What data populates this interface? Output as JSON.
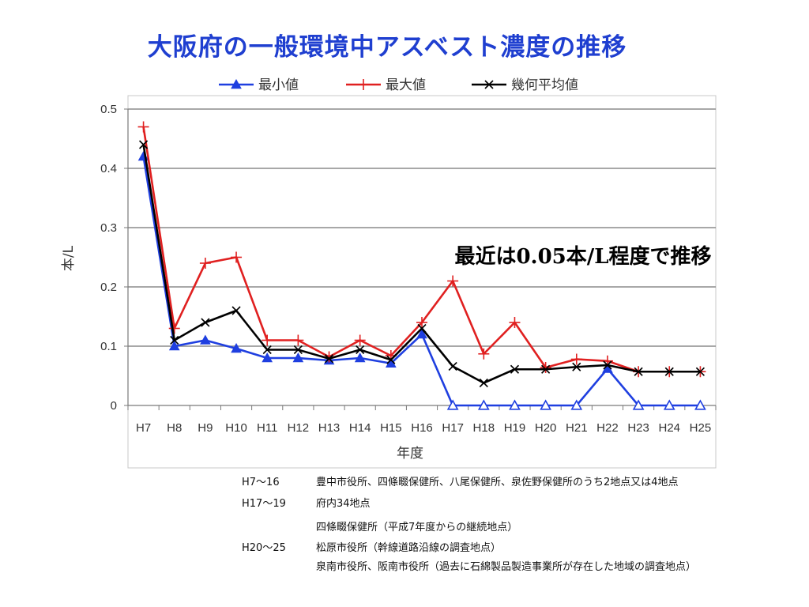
{
  "slide": {
    "title": "大阪府の一般環境中アスベスト濃度の推移"
  },
  "chart_data": {
    "type": "line",
    "categories": [
      "H7",
      "H8",
      "H9",
      "H10",
      "H11",
      "H12",
      "H13",
      "H14",
      "H15",
      "H16",
      "H17",
      "H18",
      "H19",
      "H20",
      "H21",
      "H22",
      "H23",
      "H24",
      "H25"
    ],
    "series": [
      {
        "name": "最小値",
        "color": "#1f3fe0",
        "marker": "triangle",
        "values": [
          0.42,
          0.1,
          0.11,
          0.096,
          0.08,
          0.08,
          0.076,
          0.08,
          0.071,
          0.12,
          0.0,
          0.0,
          0.0,
          0.0,
          0.0,
          0.062,
          0.0,
          0.0,
          0.0
        ]
      },
      {
        "name": "最大値",
        "color": "#e02020",
        "marker": "plus",
        "values": [
          0.47,
          0.13,
          0.24,
          0.25,
          0.11,
          0.11,
          0.082,
          0.11,
          0.084,
          0.14,
          0.21,
          0.087,
          0.14,
          0.064,
          0.078,
          0.075,
          0.057,
          0.057,
          0.057
        ]
      },
      {
        "name": "幾何平均値",
        "color": "#000000",
        "marker": "x",
        "values": [
          0.44,
          0.11,
          0.14,
          0.16,
          0.094,
          0.094,
          0.079,
          0.094,
          0.077,
          0.13,
          0.066,
          0.038,
          0.061,
          0.061,
          0.065,
          0.068,
          0.057,
          0.057,
          0.057
        ]
      }
    ],
    "hollow_zero_markers_series": "最小値",
    "xlabel": "年度",
    "ylabel": "本/L",
    "ylim": [
      0,
      0.5
    ],
    "yticks": [
      "0",
      "0.1",
      "0.2",
      "0.3",
      "0.4",
      "0.5"
    ],
    "grid": true,
    "legend_position": "top",
    "annotation": "最近は0.05本/L程度で推移"
  },
  "notes": [
    {
      "period": "H7〜16",
      "text": "豊中市役所、四條畷保健所、八尾保健所、泉佐野保健所のうち2地点又は4地点"
    },
    {
      "period": "H17〜19",
      "text": "府内34地点"
    },
    {
      "period": "",
      "text": "四條畷保健所（平成7年度からの継続地点）"
    },
    {
      "period": "H20〜25",
      "text": "松原市役所（幹線道路沿線の調査地点）"
    },
    {
      "period": "",
      "text": "泉南市役所、阪南市役所（過去に石綿製品製造事業所が存在した地域の調査地点）"
    }
  ]
}
